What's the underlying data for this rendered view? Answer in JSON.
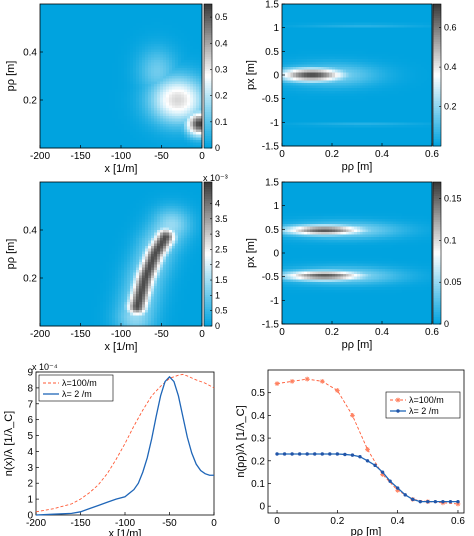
{
  "colors": {
    "colormap": [
      "#00a3df",
      "#ffffff",
      "#383838"
    ],
    "line_red": "#ff5a36",
    "line_blue": "#1f66b8",
    "marker_red": "#ff8060",
    "marker_blue": "#2255a8"
  },
  "chart_data": [
    {
      "id": "p1",
      "type": "heatmap",
      "xlabel": "x [1/m]",
      "ylabel": "pρ [m]",
      "xlim": [
        -200,
        0
      ],
      "ylim": [
        0,
        0.6
      ],
      "xticks": [
        -200,
        -150,
        -100,
        -50,
        0
      ],
      "xtick_labels": [
        "-200",
        "-150",
        "-100",
        "-50",
        "0"
      ],
      "yticks": [
        0.2,
        0.4
      ],
      "ytick_labels": [
        "0.2",
        "0.4"
      ],
      "colorbar": {
        "min": 0,
        "max": 0.55,
        "ticks": [
          0,
          0.1,
          0.2,
          0.3,
          0.4,
          0.5
        ],
        "tick_labels": [
          "0",
          "0.1",
          "0.2",
          "0.3",
          "0.4",
          "0.5"
        ],
        "exponent_label": ""
      },
      "features": [
        {
          "shape": "ellipse",
          "cx": -3,
          "cy": 0.1,
          "rx": 20,
          "ry": 0.06,
          "level": 0.98
        },
        {
          "shape": "ellipse",
          "cx": -30,
          "cy": 0.2,
          "rx": 42,
          "ry": 0.12,
          "level": 0.6
        },
        {
          "shape": "ellipse",
          "cx": -55,
          "cy": 0.32,
          "rx": 30,
          "ry": 0.12,
          "level": 0.22
        }
      ]
    },
    {
      "id": "p2",
      "type": "heatmap",
      "xlabel": "pρ [m]",
      "ylabel": "px [m]",
      "xlim": [
        0,
        0.6
      ],
      "ylim": [
        -1.5,
        1.5
      ],
      "xticks": [
        0,
        0.2,
        0.4,
        0.6
      ],
      "xtick_labels": [
        "0",
        "0.2",
        "0.4",
        "0.6"
      ],
      "yticks": [
        -1.5,
        -1,
        -0.5,
        0,
        0.5,
        1,
        1.5
      ],
      "ytick_labels": [
        "-1.5",
        "-1",
        "-0.5",
        "0",
        "0.5",
        "1",
        "1.5"
      ],
      "colorbar": {
        "min": 0,
        "max": 0.72,
        "ticks": [
          0.2,
          0.4,
          0.6
        ],
        "tick_labels": [
          "0.2",
          "0.4",
          "0.6"
        ],
        "exponent_label": ""
      },
      "features": [
        {
          "shape": "ellipse",
          "cx": 0.12,
          "cy": 0.0,
          "rx": 0.16,
          "ry": 0.17,
          "level": 0.98
        },
        {
          "shape": "ellipse",
          "cx": 0.2,
          "cy": 0.0,
          "rx": 0.23,
          "ry": 0.3,
          "level": 0.25
        },
        {
          "shape": "ellipse",
          "cx": 0.32,
          "cy": 1.05,
          "rx": 0.3,
          "ry": 0.03,
          "level": 0.18
        },
        {
          "shape": "ellipse",
          "cx": 0.32,
          "cy": -1.05,
          "rx": 0.3,
          "ry": 0.03,
          "level": 0.18
        }
      ]
    },
    {
      "id": "p3",
      "type": "heatmap",
      "xlabel": "x [1/m]",
      "ylabel": "pρ [m]",
      "xlim": [
        -200,
        0
      ],
      "ylim": [
        0,
        0.6
      ],
      "xticks": [
        -200,
        -150,
        -100,
        -50,
        0
      ],
      "xtick_labels": [
        "-200",
        "-150",
        "-100",
        "-50",
        "0"
      ],
      "yticks": [
        0.2,
        0.4
      ],
      "ytick_labels": [
        "0.2",
        "0.4"
      ],
      "colorbar": {
        "min": 0,
        "max": 0.0047,
        "ticks": [
          0,
          0.0005,
          0.001,
          0.0015,
          0.002,
          0.0025,
          0.003,
          0.0035,
          0.004
        ],
        "tick_labels": [
          "0",
          "0.5",
          "1",
          "1.5",
          "2",
          "2.5",
          "3",
          "3.5",
          "4"
        ],
        "exponent_label": "x 10⁻³"
      },
      "features": [
        {
          "shape": "band",
          "points": [
            [
              -80,
              0.08
            ],
            [
              -70,
              0.2
            ],
            [
              -58,
              0.3
            ],
            [
              -45,
              0.37
            ]
          ],
          "half_width": 16,
          "level": 0.95
        },
        {
          "shape": "band",
          "points": [
            [
              -82,
              0.04
            ],
            [
              -70,
              0.2
            ],
            [
              -55,
              0.33
            ],
            [
              -38,
              0.42
            ]
          ],
          "half_width": 30,
          "level": 0.3
        }
      ]
    },
    {
      "id": "p4",
      "type": "heatmap",
      "xlabel": "pρ [m]",
      "ylabel": "px [m]",
      "xlim": [
        0,
        0.6
      ],
      "ylim": [
        -1.5,
        1.5
      ],
      "xticks": [
        0,
        0.2,
        0.4,
        0.6
      ],
      "xtick_labels": [
        "0",
        "0.2",
        "0.4",
        "0.6"
      ],
      "yticks": [
        -1.5,
        -1,
        -0.5,
        0,
        0.5,
        1,
        1.5
      ],
      "ytick_labels": [
        "-1.5",
        "-1",
        "-0.5",
        "0",
        "0.5",
        "1",
        "1.5"
      ],
      "colorbar": {
        "min": 0,
        "max": 0.17,
        "ticks": [
          0,
          0.05,
          0.1,
          0.15
        ],
        "tick_labels": [
          "0",
          "0.05",
          "0.1",
          "0.15"
        ],
        "exponent_label": ""
      },
      "features": [
        {
          "shape": "ellipse",
          "cx": 0.17,
          "cy": 0.48,
          "rx": 0.2,
          "ry": 0.13,
          "level": 0.92
        },
        {
          "shape": "ellipse",
          "cx": 0.17,
          "cy": -0.48,
          "rx": 0.2,
          "ry": 0.13,
          "level": 0.92
        },
        {
          "shape": "ellipse",
          "cx": 0.24,
          "cy": 0.48,
          "rx": 0.28,
          "ry": 0.22,
          "level": 0.3
        },
        {
          "shape": "ellipse",
          "cx": 0.24,
          "cy": -0.48,
          "rx": 0.28,
          "ry": 0.22,
          "level": 0.3
        }
      ]
    },
    {
      "id": "p5",
      "type": "line",
      "xlabel": "x [1/m]",
      "ylabel": "n(x)/λ [1/λ_C]",
      "xlim": [
        -200,
        0
      ],
      "ylim": [
        0,
        0.0009
      ],
      "xticks": [
        -200,
        -150,
        -100,
        -50,
        0
      ],
      "xtick_labels": [
        "-200",
        "-150",
        "-100",
        "-50",
        "0"
      ],
      "yticks": [
        0,
        0.0001,
        0.0002,
        0.0003,
        0.0004,
        0.0005,
        0.0006,
        0.0007,
        0.0008,
        0.0009
      ],
      "ytick_labels": [
        "0",
        "1",
        "2",
        "3",
        "4",
        "5",
        "6",
        "7",
        "8",
        "9"
      ],
      "exponent_label": "x 10⁻⁴",
      "legend": {
        "placement": "top-left"
      },
      "series": [
        {
          "name": "λ=100/m",
          "color_key": "line_red",
          "dash": true,
          "x": [
            -200,
            -180,
            -160,
            -150,
            -140,
            -130,
            -120,
            -110,
            -100,
            -90,
            -80,
            -70,
            -60,
            -50,
            -40,
            -35,
            -30,
            -20,
            -10,
            0
          ],
          "y": [
            2e-05,
            4e-05,
            7e-05,
            0.0001,
            0.00014,
            0.00019,
            0.00026,
            0.00035,
            0.00045,
            0.00056,
            0.00066,
            0.00075,
            0.00081,
            0.00086,
            0.00088,
            0.000885,
            0.000875,
            0.00085,
            0.00083,
            0.0008
          ]
        },
        {
          "name": "λ=  2  /m",
          "color_key": "line_blue",
          "dash": false,
          "x": [
            -200,
            -180,
            -160,
            -150,
            -140,
            -130,
            -120,
            -110,
            -100,
            -90,
            -85,
            -80,
            -75,
            -70,
            -65,
            -60,
            -55,
            -50,
            -45,
            -40,
            -35,
            -30,
            -25,
            -20,
            -15,
            -10,
            -5,
            0
          ],
          "y": [
            0.0,
            5e-06,
            1e-05,
            2e-05,
            4e-05,
            6e-05,
            8e-05,
            0.0001,
            0.000115,
            0.00016,
            0.0002,
            0.00027,
            0.00036,
            0.00048,
            0.00062,
            0.00075,
            0.00084,
            0.00087,
            0.00084,
            0.00075,
            0.00062,
            0.00049,
            0.00039,
            0.00032,
            0.00028,
            0.00026,
            0.00025,
            0.00025
          ]
        }
      ]
    },
    {
      "id": "p6",
      "type": "line",
      "xlabel": "pρ [m]",
      "ylabel": "n(pρ)/λ [1/λ_C]",
      "xlim": [
        -0.03,
        0.62
      ],
      "ylim": [
        -0.03,
        0.6
      ],
      "xticks": [
        0,
        0.2,
        0.4,
        0.6
      ],
      "xtick_labels": [
        "0",
        "0.2",
        "0.4",
        "0.6"
      ],
      "yticks": [
        0,
        0.1,
        0.2,
        0.3,
        0.4,
        0.5
      ],
      "ytick_labels": [
        "0",
        "0.1",
        "0.2",
        "0.3",
        "0.4",
        "0.5"
      ],
      "legend": {
        "placement": "top-right"
      },
      "series": [
        {
          "name": "λ=100/m",
          "color_key": "line_red",
          "dash": true,
          "marker": "star",
          "x": [
            0,
            0.05,
            0.1,
            0.15,
            0.2,
            0.25,
            0.3,
            0.35,
            0.4,
            0.45,
            0.5,
            0.55,
            0.6
          ],
          "y": [
            0.54,
            0.55,
            0.56,
            0.55,
            0.51,
            0.4,
            0.25,
            0.14,
            0.07,
            0.03,
            0.02,
            0.015,
            0.01
          ]
        },
        {
          "name": "λ=  2  /m",
          "color_key": "line_blue",
          "dash": false,
          "marker": "dot",
          "x": [
            0,
            0.025,
            0.05,
            0.075,
            0.1,
            0.125,
            0.15,
            0.175,
            0.2,
            0.225,
            0.25,
            0.275,
            0.3,
            0.325,
            0.35,
            0.375,
            0.4,
            0.425,
            0.45,
            0.475,
            0.5,
            0.525,
            0.55,
            0.575,
            0.6
          ],
          "y": [
            0.23,
            0.23,
            0.23,
            0.23,
            0.23,
            0.23,
            0.23,
            0.23,
            0.23,
            0.228,
            0.225,
            0.218,
            0.2,
            0.18,
            0.15,
            0.11,
            0.08,
            0.05,
            0.03,
            0.02,
            0.02,
            0.02,
            0.02,
            0.02,
            0.02
          ]
        }
      ]
    }
  ]
}
